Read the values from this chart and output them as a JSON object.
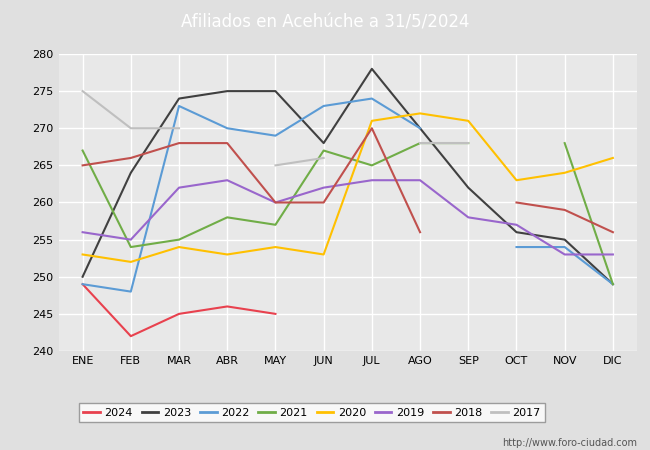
{
  "title": "Afiliados en Acehúche a 31/5/2024",
  "title_color": "#ffffff",
  "title_bg_color": "#4472c4",
  "months": [
    "ENE",
    "FEB",
    "MAR",
    "ABR",
    "MAY",
    "JUN",
    "JUL",
    "AGO",
    "SEP",
    "OCT",
    "NOV",
    "DIC"
  ],
  "ylim": [
    240,
    280
  ],
  "yticks": [
    240,
    245,
    250,
    255,
    260,
    265,
    270,
    275,
    280
  ],
  "series": {
    "2024": {
      "color": "#e8414e",
      "data": [
        249,
        242,
        245,
        246,
        245,
        null,
        null,
        null,
        null,
        null,
        null,
        null
      ]
    },
    "2023": {
      "color": "#404040",
      "data": [
        250,
        264,
        274,
        275,
        275,
        268,
        278,
        270,
        262,
        256,
        255,
        249
      ]
    },
    "2022": {
      "color": "#5b9bd5",
      "data": [
        249,
        248,
        273,
        270,
        269,
        273,
        274,
        270,
        null,
        254,
        254,
        249
      ]
    },
    "2021": {
      "color": "#70ad47",
      "data": [
        267,
        254,
        255,
        258,
        257,
        267,
        265,
        268,
        268,
        null,
        268,
        249
      ]
    },
    "2020": {
      "color": "#ffc000",
      "data": [
        253,
        252,
        254,
        253,
        254,
        253,
        271,
        272,
        271,
        263,
        264,
        266
      ]
    },
    "2019": {
      "color": "#9966cc",
      "data": [
        256,
        255,
        262,
        263,
        260,
        262,
        263,
        263,
        258,
        257,
        253,
        253
      ]
    },
    "2018": {
      "color": "#c0504d",
      "data": [
        265,
        266,
        268,
        268,
        260,
        260,
        270,
        256,
        null,
        260,
        259,
        256
      ]
    },
    "2017": {
      "color": "#bfbfbf",
      "data": [
        275,
        270,
        270,
        null,
        265,
        266,
        null,
        268,
        268,
        null,
        null,
        null
      ]
    }
  },
  "legend_order": [
    "2024",
    "2023",
    "2022",
    "2021",
    "2020",
    "2019",
    "2018",
    "2017"
  ],
  "footer_text": "http://www.foro-ciudad.com",
  "bg_color": "#e0e0e0",
  "plot_bg_color": "#e8e8e8",
  "grid_color": "#ffffff"
}
